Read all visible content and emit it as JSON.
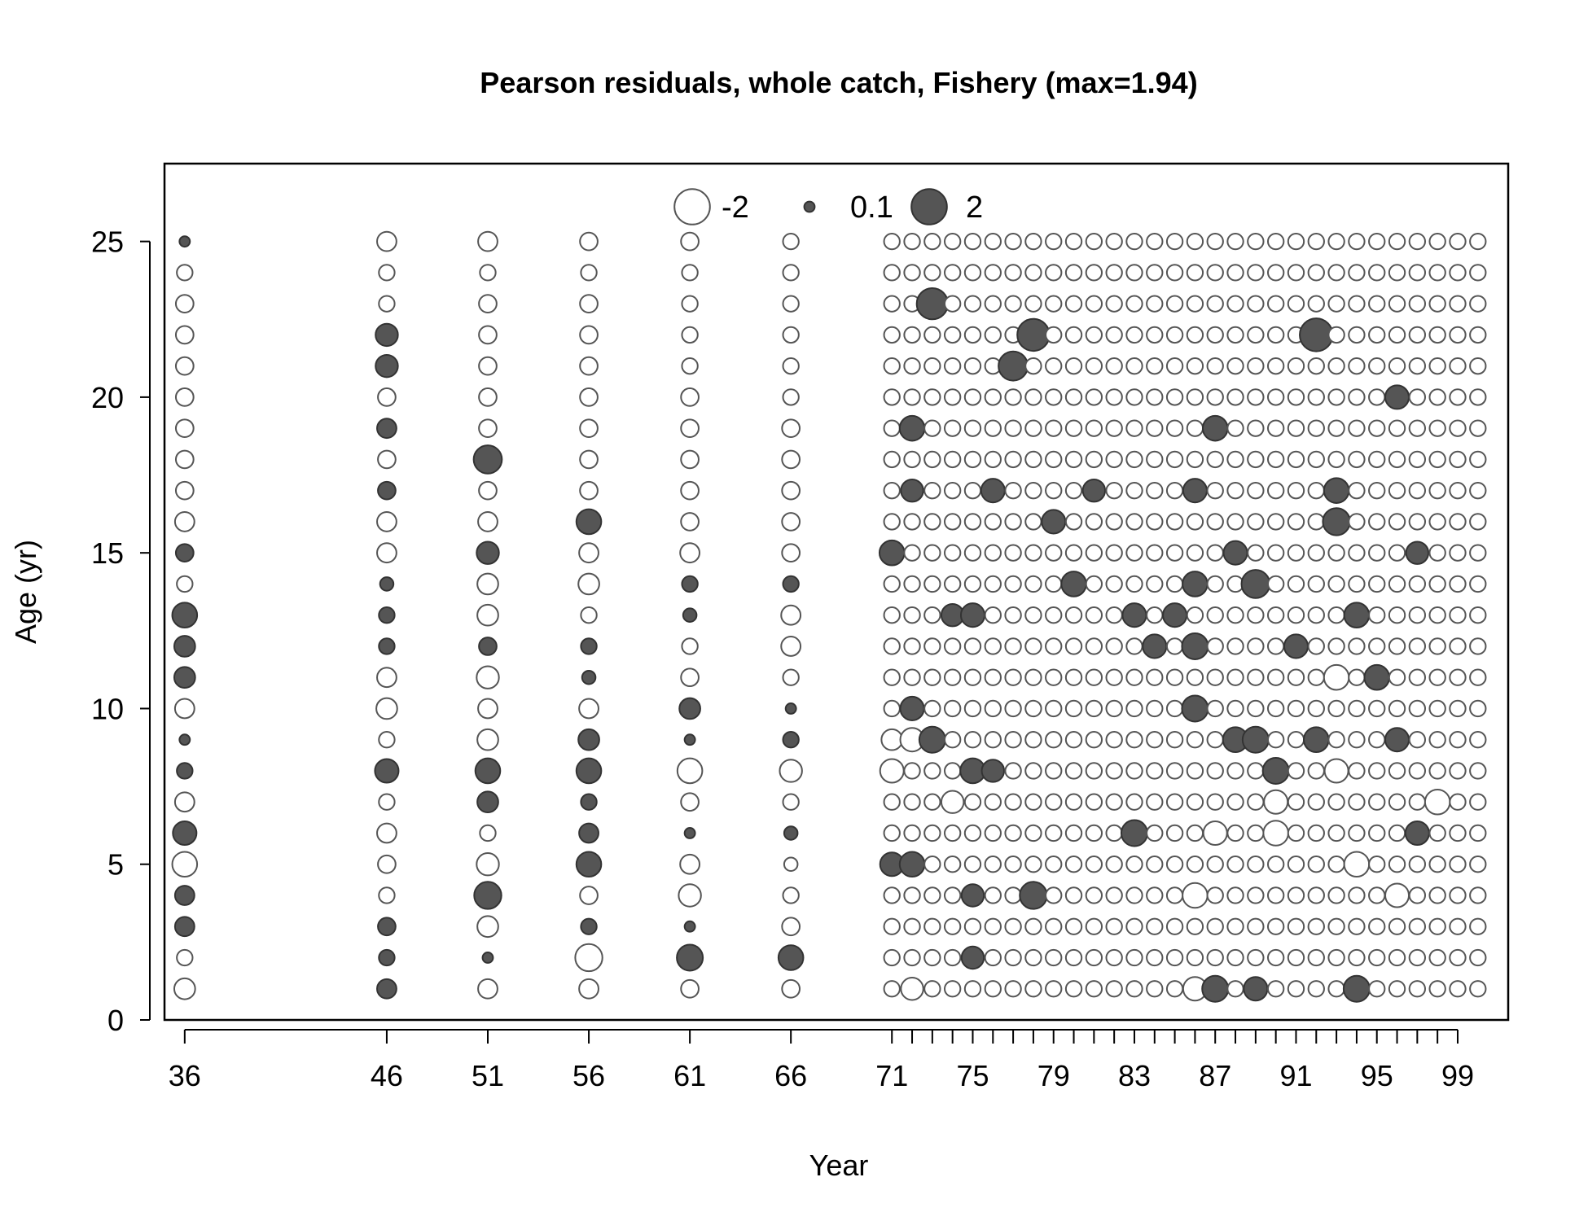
{
  "chart_data": {
    "type": "scatter",
    "subtype": "bubble",
    "title": "Pearson residuals, whole catch, Fishery (max=1.94)",
    "xlabel": "Year",
    "ylabel": "Age (yr)",
    "xlim": [
      1935,
      2001.5
    ],
    "ylim": [
      0,
      27.5
    ],
    "x_ticks": [
      1936,
      1946,
      1951,
      1956,
      1961,
      1966,
      1971,
      1972,
      1973,
      1974,
      1975,
      1976,
      1977,
      1978,
      1979,
      1980,
      1981,
      1982,
      1983,
      1984,
      1985,
      1986,
      1987,
      1988,
      1989,
      1990,
      1991,
      1992,
      1993,
      1994,
      1995,
      1996,
      1997,
      1998,
      1999
    ],
    "x_tick_labels": [
      {
        "year": 1936,
        "label": "36"
      },
      {
        "year": 1946,
        "label": "46"
      },
      {
        "year": 1951,
        "label": "51"
      },
      {
        "year": 1956,
        "label": "56"
      },
      {
        "year": 1961,
        "label": "61"
      },
      {
        "year": 1966,
        "label": "66"
      },
      {
        "year": 1971,
        "label": "71"
      },
      {
        "year": 1975,
        "label": "75"
      },
      {
        "year": 1979,
        "label": "79"
      },
      {
        "year": 1983,
        "label": "83"
      },
      {
        "year": 1987,
        "label": "87"
      },
      {
        "year": 1991,
        "label": "91"
      },
      {
        "year": 1995,
        "label": "95"
      },
      {
        "year": 1999,
        "label": "99"
      }
    ],
    "y_ticks": [
      0,
      5,
      10,
      15,
      20,
      25
    ],
    "years_sparse": [
      1936,
      1946,
      1951,
      1956,
      1961,
      1966
    ],
    "years_dense": [
      1971,
      2000
    ],
    "ages": [
      1,
      25
    ],
    "max_abs_residual": 1.94,
    "legend": {
      "placement": "top-center",
      "entries": [
        {
          "label": "-2",
          "value": -2
        },
        {
          "label": "0.1",
          "value": 0.1
        },
        {
          "label": "2",
          "value": 2
        }
      ]
    },
    "residuals": [
      {
        "year": 1936,
        "age": 1,
        "value": -0.6
      },
      {
        "year": 1936,
        "age": 2,
        "value": -0.3
      },
      {
        "year": 1936,
        "age": 3,
        "value": 0.5
      },
      {
        "year": 1936,
        "age": 4,
        "value": 0.5
      },
      {
        "year": 1936,
        "age": 5,
        "value": -0.9
      },
      {
        "year": 1936,
        "age": 6,
        "value": 0.8
      },
      {
        "year": 1936,
        "age": 7,
        "value": -0.5
      },
      {
        "year": 1936,
        "age": 8,
        "value": 0.3
      },
      {
        "year": 1936,
        "age": 9,
        "value": 0.1
      },
      {
        "year": 1936,
        "age": 10,
        "value": -0.5
      },
      {
        "year": 1936,
        "age": 11,
        "value": 0.6
      },
      {
        "year": 1936,
        "age": 12,
        "value": 0.6
      },
      {
        "year": 1936,
        "age": 13,
        "value": 0.9
      },
      {
        "year": 1936,
        "age": 14,
        "value": -0.3
      },
      {
        "year": 1936,
        "age": 15,
        "value": 0.4
      },
      {
        "year": 1936,
        "age": 16,
        "value": -0.5
      },
      {
        "year": 1936,
        "age": 17,
        "value": -0.4
      },
      {
        "year": 1936,
        "age": 18,
        "value": -0.4
      },
      {
        "year": 1936,
        "age": 19,
        "value": -0.4
      },
      {
        "year": 1936,
        "age": 20,
        "value": -0.4
      },
      {
        "year": 1936,
        "age": 21,
        "value": -0.4
      },
      {
        "year": 1936,
        "age": 22,
        "value": -0.4
      },
      {
        "year": 1936,
        "age": 23,
        "value": -0.4
      },
      {
        "year": 1936,
        "age": 24,
        "value": -0.3
      },
      {
        "year": 1936,
        "age": 25,
        "value": 0.1
      },
      {
        "year": 1946,
        "age": 1,
        "value": 0.5
      },
      {
        "year": 1946,
        "age": 2,
        "value": 0.3
      },
      {
        "year": 1946,
        "age": 3,
        "value": 0.4
      },
      {
        "year": 1946,
        "age": 4,
        "value": -0.3
      },
      {
        "year": 1946,
        "age": 5,
        "value": -0.4
      },
      {
        "year": 1946,
        "age": 6,
        "value": -0.5
      },
      {
        "year": 1946,
        "age": 7,
        "value": -0.3
      },
      {
        "year": 1946,
        "age": 8,
        "value": 0.8
      },
      {
        "year": 1946,
        "age": 9,
        "value": -0.3
      },
      {
        "year": 1946,
        "age": 10,
        "value": -0.6
      },
      {
        "year": 1946,
        "age": 11,
        "value": -0.5
      },
      {
        "year": 1946,
        "age": 12,
        "value": 0.3
      },
      {
        "year": 1946,
        "age": 13,
        "value": 0.3
      },
      {
        "year": 1946,
        "age": 14,
        "value": 0.2
      },
      {
        "year": 1946,
        "age": 15,
        "value": -0.5
      },
      {
        "year": 1946,
        "age": 16,
        "value": -0.5
      },
      {
        "year": 1946,
        "age": 17,
        "value": 0.4
      },
      {
        "year": 1946,
        "age": 18,
        "value": -0.4
      },
      {
        "year": 1946,
        "age": 19,
        "value": 0.5
      },
      {
        "year": 1946,
        "age": 20,
        "value": -0.4
      },
      {
        "year": 1946,
        "age": 21,
        "value": 0.7
      },
      {
        "year": 1946,
        "age": 22,
        "value": 0.7
      },
      {
        "year": 1946,
        "age": 23,
        "value": -0.3
      },
      {
        "year": 1946,
        "age": 24,
        "value": -0.3
      },
      {
        "year": 1946,
        "age": 25,
        "value": -0.5
      },
      {
        "year": 1951,
        "age": 1,
        "value": -0.5
      },
      {
        "year": 1951,
        "age": 2,
        "value": 0.1
      },
      {
        "year": 1951,
        "age": 3,
        "value": -0.6
      },
      {
        "year": 1951,
        "age": 4,
        "value": 1.1
      },
      {
        "year": 1951,
        "age": 5,
        "value": -0.7
      },
      {
        "year": 1951,
        "age": 6,
        "value": -0.3
      },
      {
        "year": 1951,
        "age": 7,
        "value": 0.6
      },
      {
        "year": 1951,
        "age": 8,
        "value": 0.9
      },
      {
        "year": 1951,
        "age": 9,
        "value": -0.6
      },
      {
        "year": 1951,
        "age": 10,
        "value": -0.5
      },
      {
        "year": 1951,
        "age": 11,
        "value": -0.7
      },
      {
        "year": 1951,
        "age": 12,
        "value": 0.4
      },
      {
        "year": 1951,
        "age": 13,
        "value": -0.6
      },
      {
        "year": 1951,
        "age": 14,
        "value": -0.6
      },
      {
        "year": 1951,
        "age": 15,
        "value": 0.7
      },
      {
        "year": 1951,
        "age": 16,
        "value": -0.5
      },
      {
        "year": 1951,
        "age": 17,
        "value": -0.4
      },
      {
        "year": 1951,
        "age": 18,
        "value": 1.2
      },
      {
        "year": 1951,
        "age": 19,
        "value": -0.4
      },
      {
        "year": 1951,
        "age": 20,
        "value": -0.4
      },
      {
        "year": 1951,
        "age": 21,
        "value": -0.4
      },
      {
        "year": 1951,
        "age": 22,
        "value": -0.4
      },
      {
        "year": 1951,
        "age": 23,
        "value": -0.4
      },
      {
        "year": 1951,
        "age": 24,
        "value": -0.3
      },
      {
        "year": 1951,
        "age": 25,
        "value": -0.5
      },
      {
        "year": 1956,
        "age": 1,
        "value": -0.5
      },
      {
        "year": 1956,
        "age": 2,
        "value": -1.1
      },
      {
        "year": 1956,
        "age": 3,
        "value": 0.3
      },
      {
        "year": 1956,
        "age": 4,
        "value": -0.4
      },
      {
        "year": 1956,
        "age": 5,
        "value": 0.9
      },
      {
        "year": 1956,
        "age": 6,
        "value": 0.5
      },
      {
        "year": 1956,
        "age": 7,
        "value": 0.3
      },
      {
        "year": 1956,
        "age": 8,
        "value": 0.9
      },
      {
        "year": 1956,
        "age": 9,
        "value": 0.6
      },
      {
        "year": 1956,
        "age": 10,
        "value": -0.5
      },
      {
        "year": 1956,
        "age": 11,
        "value": 0.2
      },
      {
        "year": 1956,
        "age": 12,
        "value": 0.3
      },
      {
        "year": 1956,
        "age": 13,
        "value": -0.3
      },
      {
        "year": 1956,
        "age": 14,
        "value": -0.6
      },
      {
        "year": 1956,
        "age": 15,
        "value": -0.5
      },
      {
        "year": 1956,
        "age": 16,
        "value": 0.9
      },
      {
        "year": 1956,
        "age": 17,
        "value": -0.4
      },
      {
        "year": 1956,
        "age": 18,
        "value": -0.4
      },
      {
        "year": 1956,
        "age": 19,
        "value": -0.4
      },
      {
        "year": 1956,
        "age": 20,
        "value": -0.4
      },
      {
        "year": 1956,
        "age": 21,
        "value": -0.4
      },
      {
        "year": 1956,
        "age": 22,
        "value": -0.4
      },
      {
        "year": 1956,
        "age": 23,
        "value": -0.4
      },
      {
        "year": 1956,
        "age": 24,
        "value": -0.3
      },
      {
        "year": 1956,
        "age": 25,
        "value": -0.4
      },
      {
        "year": 1961,
        "age": 1,
        "value": -0.4
      },
      {
        "year": 1961,
        "age": 2,
        "value": 1.0
      },
      {
        "year": 1961,
        "age": 3,
        "value": 0.1
      },
      {
        "year": 1961,
        "age": 4,
        "value": -0.7
      },
      {
        "year": 1961,
        "age": 5,
        "value": -0.5
      },
      {
        "year": 1961,
        "age": 6,
        "value": 0.1
      },
      {
        "year": 1961,
        "age": 7,
        "value": -0.4
      },
      {
        "year": 1961,
        "age": 8,
        "value": -0.9
      },
      {
        "year": 1961,
        "age": 9,
        "value": 0.1
      },
      {
        "year": 1961,
        "age": 10,
        "value": 0.6
      },
      {
        "year": 1961,
        "age": 11,
        "value": -0.4
      },
      {
        "year": 1961,
        "age": 12,
        "value": -0.3
      },
      {
        "year": 1961,
        "age": 13,
        "value": 0.2
      },
      {
        "year": 1961,
        "age": 14,
        "value": 0.3
      },
      {
        "year": 1961,
        "age": 15,
        "value": -0.5
      },
      {
        "year": 1961,
        "age": 16,
        "value": -0.4
      },
      {
        "year": 1961,
        "age": 17,
        "value": -0.4
      },
      {
        "year": 1961,
        "age": 18,
        "value": -0.4
      },
      {
        "year": 1961,
        "age": 19,
        "value": -0.4
      },
      {
        "year": 1961,
        "age": 20,
        "value": -0.4
      },
      {
        "year": 1961,
        "age": 21,
        "value": -0.3
      },
      {
        "year": 1961,
        "age": 22,
        "value": -0.3
      },
      {
        "year": 1961,
        "age": 23,
        "value": -0.3
      },
      {
        "year": 1961,
        "age": 24,
        "value": -0.3
      },
      {
        "year": 1961,
        "age": 25,
        "value": -0.4
      },
      {
        "year": 1966,
        "age": 1,
        "value": -0.4
      },
      {
        "year": 1966,
        "age": 2,
        "value": 0.9
      },
      {
        "year": 1966,
        "age": 3,
        "value": -0.4
      },
      {
        "year": 1966,
        "age": 4,
        "value": -0.3
      },
      {
        "year": 1966,
        "age": 5,
        "value": -0.2
      },
      {
        "year": 1966,
        "age": 6,
        "value": 0.2
      },
      {
        "year": 1966,
        "age": 7,
        "value": -0.3
      },
      {
        "year": 1966,
        "age": 8,
        "value": -0.7
      },
      {
        "year": 1966,
        "age": 9,
        "value": 0.3
      },
      {
        "year": 1966,
        "age": 10,
        "value": 0.1
      },
      {
        "year": 1966,
        "age": 11,
        "value": -0.3
      },
      {
        "year": 1966,
        "age": 12,
        "value": -0.5
      },
      {
        "year": 1966,
        "age": 13,
        "value": -0.5
      },
      {
        "year": 1966,
        "age": 14,
        "value": 0.3
      },
      {
        "year": 1966,
        "age": 15,
        "value": -0.4
      },
      {
        "year": 1966,
        "age": 16,
        "value": -0.4
      },
      {
        "year": 1966,
        "age": 17,
        "value": -0.4
      },
      {
        "year": 1966,
        "age": 18,
        "value": -0.4
      },
      {
        "year": 1966,
        "age": 19,
        "value": -0.4
      },
      {
        "year": 1966,
        "age": 20,
        "value": -0.3
      },
      {
        "year": 1966,
        "age": 21,
        "value": -0.3
      },
      {
        "year": 1966,
        "age": 22,
        "value": -0.3
      },
      {
        "year": 1966,
        "age": 23,
        "value": -0.3
      },
      {
        "year": 1966,
        "age": 24,
        "value": -0.3
      },
      {
        "year": 1966,
        "age": 25,
        "value": -0.3
      },
      {
        "year": 1971,
        "age": 5,
        "value": 0.8
      },
      {
        "year": 1971,
        "age": 15,
        "value": 0.9
      },
      {
        "year": 1971,
        "age": 8,
        "value": -0.8
      },
      {
        "year": 1971,
        "age": 9,
        "value": -0.6
      },
      {
        "year": 1972,
        "age": 5,
        "value": 0.9
      },
      {
        "year": 1972,
        "age": 10,
        "value": 0.8
      },
      {
        "year": 1972,
        "age": 17,
        "value": 0.7
      },
      {
        "year": 1972,
        "age": 19,
        "value": 0.9
      },
      {
        "year": 1972,
        "age": 9,
        "value": -0.8
      },
      {
        "year": 1972,
        "age": 1,
        "value": -0.7
      },
      {
        "year": 1973,
        "age": 9,
        "value": 1.0
      },
      {
        "year": 1973,
        "age": 23,
        "value": 1.5
      },
      {
        "year": 1974,
        "age": 13,
        "value": 0.7
      },
      {
        "year": 1974,
        "age": 7,
        "value": -0.7
      },
      {
        "year": 1975,
        "age": 8,
        "value": 0.9
      },
      {
        "year": 1975,
        "age": 13,
        "value": 0.8
      },
      {
        "year": 1975,
        "age": 4,
        "value": 0.7
      },
      {
        "year": 1975,
        "age": 2,
        "value": 0.7
      },
      {
        "year": 1976,
        "age": 17,
        "value": 0.8
      },
      {
        "year": 1976,
        "age": 8,
        "value": 0.7
      },
      {
        "year": 1977,
        "age": 21,
        "value": 1.3
      },
      {
        "year": 1978,
        "age": 4,
        "value": 1.1
      },
      {
        "year": 1978,
        "age": 22,
        "value": 1.6
      },
      {
        "year": 1979,
        "age": 16,
        "value": 0.8
      },
      {
        "year": 1980,
        "age": 14,
        "value": 0.9
      },
      {
        "year": 1981,
        "age": 17,
        "value": 0.7
      },
      {
        "year": 1983,
        "age": 6,
        "value": 1.0
      },
      {
        "year": 1983,
        "age": 13,
        "value": 0.8
      },
      {
        "year": 1984,
        "age": 12,
        "value": 0.8
      },
      {
        "year": 1985,
        "age": 13,
        "value": 0.8
      },
      {
        "year": 1986,
        "age": 10,
        "value": 1.0
      },
      {
        "year": 1986,
        "age": 12,
        "value": 1.0
      },
      {
        "year": 1986,
        "age": 14,
        "value": 0.9
      },
      {
        "year": 1986,
        "age": 17,
        "value": 0.8
      },
      {
        "year": 1986,
        "age": 4,
        "value": -0.9
      },
      {
        "year": 1986,
        "age": 1,
        "value": -0.8
      },
      {
        "year": 1987,
        "age": 1,
        "value": 1.0
      },
      {
        "year": 1987,
        "age": 19,
        "value": 0.9
      },
      {
        "year": 1987,
        "age": 6,
        "value": -0.8
      },
      {
        "year": 1988,
        "age": 9,
        "value": 0.9
      },
      {
        "year": 1988,
        "age": 15,
        "value": 0.8
      },
      {
        "year": 1989,
        "age": 9,
        "value": 1.0
      },
      {
        "year": 1989,
        "age": 14,
        "value": 1.2
      },
      {
        "year": 1989,
        "age": 1,
        "value": 0.8
      },
      {
        "year": 1990,
        "age": 8,
        "value": 1.0
      },
      {
        "year": 1990,
        "age": 6,
        "value": -0.9
      },
      {
        "year": 1990,
        "age": 7,
        "value": -0.8
      },
      {
        "year": 1991,
        "age": 12,
        "value": 0.8
      },
      {
        "year": 1992,
        "age": 9,
        "value": 0.9
      },
      {
        "year": 1992,
        "age": 22,
        "value": 1.7
      },
      {
        "year": 1993,
        "age": 16,
        "value": 1.1
      },
      {
        "year": 1993,
        "age": 17,
        "value": 0.9
      },
      {
        "year": 1993,
        "age": 11,
        "value": -0.9
      },
      {
        "year": 1993,
        "age": 8,
        "value": -0.8
      },
      {
        "year": 1994,
        "age": 1,
        "value": 1.0
      },
      {
        "year": 1994,
        "age": 13,
        "value": 0.9
      },
      {
        "year": 1994,
        "age": 5,
        "value": -0.9
      },
      {
        "year": 1995,
        "age": 11,
        "value": 0.9
      },
      {
        "year": 1996,
        "age": 9,
        "value": 0.8
      },
      {
        "year": 1996,
        "age": 4,
        "value": -0.8
      },
      {
        "year": 1996,
        "age": 20,
        "value": 0.8
      },
      {
        "year": 1997,
        "age": 6,
        "value": 0.8
      },
      {
        "year": 1997,
        "age": 15,
        "value": 0.7
      },
      {
        "year": 1998,
        "age": 7,
        "value": -0.9
      }
    ],
    "default_residual": -0.3
  }
}
